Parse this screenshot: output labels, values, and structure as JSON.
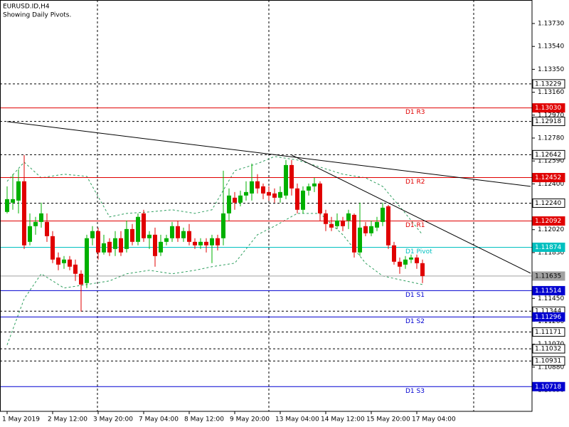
{
  "chart_data": {
    "type": "candlestick",
    "title": "EURUSD.ID,H4",
    "subtitle": "Showing Daily Pivots.",
    "up_color": "#00b000",
    "down_color": "#e00000",
    "ylim": [
      1.10513,
      1.13925
    ],
    "yticks": [
      {
        "value": 1.1373,
        "label": "1.13730"
      },
      {
        "value": 1.1354,
        "label": "1.13540"
      },
      {
        "value": 1.1335,
        "label": "1.13350"
      },
      {
        "value": 1.1316,
        "label": "1.13160"
      },
      {
        "value": 1.1297,
        "label": "1.12970"
      },
      {
        "value": 1.1278,
        "label": "1.12780"
      },
      {
        "value": 1.1259,
        "label": "1.12590"
      },
      {
        "value": 1.124,
        "label": "1.12400"
      },
      {
        "value": 1.1202,
        "label": "1.12020"
      },
      {
        "value": 1.1183,
        "label": "1.11830"
      },
      {
        "value": 1.1145,
        "label": "1.11450"
      },
      {
        "value": 1.1126,
        "label": "1.11260"
      },
      {
        "value": 1.1107,
        "label": "1.11070"
      },
      {
        "value": 1.1088,
        "label": "1.10880"
      },
      {
        "value": 1.1069,
        "label": "1.10690"
      }
    ],
    "categories": [
      "1 May 2019",
      null,
      null,
      null,
      null,
      null,
      null,
      null,
      "2 May 12:00",
      null,
      null,
      null,
      null,
      null,
      null,
      null,
      "3 May 20:00",
      null,
      null,
      null,
      null,
      null,
      null,
      null,
      "7 May 04:00",
      null,
      null,
      null,
      null,
      null,
      null,
      null,
      "8 May 12:00",
      null,
      null,
      null,
      null,
      null,
      null,
      null,
      "9 May 20:00",
      null,
      null,
      null,
      null,
      null,
      null,
      null,
      "13 May 04:00",
      null,
      null,
      null,
      null,
      null,
      null,
      null,
      "14 May 12:00",
      null,
      null,
      null,
      null,
      null,
      null,
      null,
      "15 May 20:00",
      null,
      null,
      null,
      null,
      null,
      null,
      null,
      "17 May 04:00",
      null
    ],
    "candles": [
      [
        1.12167,
        1.12379,
        1.12155,
        1.12273
      ],
      [
        1.12244,
        1.1248,
        1.12185,
        1.12273
      ],
      [
        1.12261,
        1.12521,
        1.12155,
        1.12421
      ],
      [
        1.12421,
        1.12639,
        1.1186,
        1.1189
      ],
      [
        1.11919,
        1.12155,
        1.1189,
        1.12049
      ],
      [
        1.12049,
        1.12126,
        1.11978,
        1.12084
      ],
      [
        1.12084,
        1.12244,
        1.12037,
        1.12155
      ],
      [
        1.12084,
        1.12155,
        1.11919,
        1.11966
      ],
      [
        1.11966,
        1.12008,
        1.11742,
        1.11772
      ],
      [
        1.11789,
        1.11831,
        1.11683,
        1.1173
      ],
      [
        1.11742,
        1.11801,
        1.11695,
        1.11772
      ],
      [
        1.11772,
        1.11801,
        1.11683,
        1.11713
      ],
      [
        1.1173,
        1.11772,
        1.11595,
        1.11654
      ],
      [
        1.11654,
        1.11683,
        1.11341,
        1.11565
      ],
      [
        1.11577,
        1.11978,
        1.11536,
        1.11949
      ],
      [
        1.11949,
        1.12049,
        1.1189,
        1.12008
      ],
      [
        1.12008,
        1.12037,
        1.11772,
        1.11831
      ],
      [
        1.11831,
        1.11978,
        1.11813,
        1.11907
      ],
      [
        1.11919,
        1.11949,
        1.11801,
        1.11831
      ],
      [
        1.1186,
        1.12008,
        1.11801,
        1.11949
      ],
      [
        1.11949,
        1.12008,
        1.11801,
        1.11831
      ],
      [
        1.1186,
        1.12096,
        1.11831,
        1.12025
      ],
      [
        1.12025,
        1.12067,
        1.1189,
        1.11919
      ],
      [
        1.11919,
        1.12155,
        1.1189,
        1.12126
      ],
      [
        1.12155,
        1.12185,
        1.11919,
        1.11949
      ],
      [
        1.11949,
        1.12008,
        1.1186,
        1.11978
      ],
      [
        1.11978,
        1.12037,
        1.11713,
        1.11801
      ],
      [
        1.11831,
        1.11978,
        1.11801,
        1.11919
      ],
      [
        1.11919,
        1.11978,
        1.1189,
        1.11949
      ],
      [
        1.11949,
        1.12084,
        1.11919,
        1.12049
      ],
      [
        1.12049,
        1.12096,
        1.11919,
        1.11949
      ],
      [
        1.11949,
        1.12037,
        1.11919,
        1.12008
      ],
      [
        1.12008,
        1.12067,
        1.1189,
        1.11919
      ],
      [
        1.11919,
        1.11949,
        1.1186,
        1.1189
      ],
      [
        1.1189,
        1.11949,
        1.1186,
        1.11919
      ],
      [
        1.11919,
        1.11949,
        1.11831,
        1.1189
      ],
      [
        1.1189,
        1.11978,
        1.11742,
        1.11949
      ],
      [
        1.11949,
        1.11978,
        1.11848,
        1.1189
      ],
      [
        1.11949,
        1.12509,
        1.1189,
        1.12155
      ],
      [
        1.12155,
        1.12362,
        1.12096,
        1.12303
      ],
      [
        1.12285,
        1.12332,
        1.12185,
        1.12244
      ],
      [
        1.12244,
        1.12344,
        1.12214,
        1.12303
      ],
      [
        1.12303,
        1.12421,
        1.12261,
        1.12332
      ],
      [
        1.1232,
        1.12568,
        1.12261,
        1.12421
      ],
      [
        1.12421,
        1.1248,
        1.1232,
        1.12362
      ],
      [
        1.12379,
        1.12403,
        1.12273,
        1.1232
      ],
      [
        1.12332,
        1.12379,
        1.12261,
        1.12303
      ],
      [
        1.1232,
        1.12362,
        1.12244,
        1.12285
      ],
      [
        1.12285,
        1.12379,
        1.12244,
        1.12332
      ],
      [
        1.12303,
        1.12598,
        1.12273,
        1.12556
      ],
      [
        1.12556,
        1.12598,
        1.12303,
        1.12362
      ],
      [
        1.12362,
        1.12403,
        1.12155,
        1.12185
      ],
      [
        1.12185,
        1.12379,
        1.12155,
        1.12344
      ],
      [
        1.12344,
        1.12403,
        1.12303,
        1.12379
      ],
      [
        1.12379,
        1.1245,
        1.12332,
        1.12403
      ],
      [
        1.12403,
        1.12421,
        1.12096,
        1.12155
      ],
      [
        1.12155,
        1.12185,
        1.12008,
        1.12067
      ],
      [
        1.12067,
        1.12126,
        1.12008,
        1.12037
      ],
      [
        1.12049,
        1.12155,
        1.12025,
        1.12096
      ],
      [
        1.12096,
        1.12126,
        1.12008,
        1.12049
      ],
      [
        1.12096,
        1.12185,
        1.12025,
        1.12155
      ],
      [
        1.12143,
        1.12155,
        1.11789,
        1.11831
      ],
      [
        1.11831,
        1.12244,
        1.11801,
        1.12037
      ],
      [
        1.12049,
        1.12084,
        1.11966,
        1.1199
      ],
      [
        1.1199,
        1.12096,
        1.11966,
        1.12049
      ],
      [
        1.12037,
        1.12126,
        1.12008,
        1.12084
      ],
      [
        1.12084,
        1.12244,
        1.12049,
        1.12202
      ],
      [
        1.12214,
        1.12226,
        1.1186,
        1.1189
      ],
      [
        1.1189,
        1.11919,
        1.1173,
        1.11754
      ],
      [
        1.11754,
        1.11789,
        1.11654,
        1.11713
      ],
      [
        1.1173,
        1.11801,
        1.11695,
        1.11772
      ],
      [
        1.11772,
        1.11813,
        1.11742,
        1.11789
      ],
      [
        1.11789,
        1.11813,
        1.11695,
        1.11742
      ],
      [
        1.11742,
        1.11772,
        1.11577,
        1.11635
      ]
    ],
    "bands": {
      "color": "#2e9e5e",
      "x": [
        0,
        3,
        6,
        10,
        14,
        18,
        21,
        25,
        29,
        33,
        36,
        40,
        44,
        47,
        51,
        55,
        59,
        63,
        66,
        70,
        73
      ],
      "upper": [
        1.12421,
        1.1258,
        1.1245,
        1.1248,
        1.12462,
        1.12126,
        1.12155,
        1.12167,
        1.12185,
        1.12155,
        1.12185,
        1.12509,
        1.12568,
        1.12627,
        1.12598,
        1.12539,
        1.1248,
        1.1245,
        1.12379,
        1.12155,
        1.11978
      ],
      "lower": [
        1.11064,
        1.11447,
        1.11654,
        1.11536,
        1.11565,
        1.11595,
        1.11654,
        1.11683,
        1.11654,
        1.11683,
        1.11713,
        1.11742,
        1.11978,
        1.12049,
        1.12155,
        1.12155,
        1.11978,
        1.11742,
        1.11636,
        1.11595,
        1.11565
      ]
    },
    "trendlines": [
      {
        "color": "#000000",
        "x": [
          0,
          92
        ],
        "values": [
          1.12916,
          1.12379
        ]
      },
      {
        "color": "#000000",
        "x": [
          50,
          92
        ],
        "values": [
          1.12639,
          1.11659
        ]
      }
    ],
    "levels": [
      {
        "value": 1.13229,
        "label": "1.13229",
        "color": "#000000",
        "style": "dashed"
      },
      {
        "value": 1.1303,
        "label": "1.13030",
        "name": "D1 R3",
        "color": "#e00000",
        "style": "solid"
      },
      {
        "value": 1.12918,
        "label": "1.12918",
        "color": "#000000",
        "style": "dashed"
      },
      {
        "value": 1.12642,
        "label": "1.12642",
        "color": "#000000",
        "style": "dashed"
      },
      {
        "value": 1.12452,
        "label": "1.12452",
        "name": "D1 R2",
        "color": "#e00000",
        "style": "solid"
      },
      {
        "value": 1.1224,
        "label": "1.12240",
        "color": "#000000",
        "style": "dashed"
      },
      {
        "value": 1.12092,
        "label": "1.12092",
        "name": "D1 R1",
        "color": "#e00000",
        "style": "solid"
      },
      {
        "value": 1.11874,
        "label": "1.11874",
        "name": "D1 Pivot",
        "color": "#00c0c0",
        "style": "solid"
      },
      {
        "value": 1.11635,
        "label": "1.11635",
        "color": "#a0a0a0",
        "style": "solid"
      },
      {
        "value": 1.11514,
        "label": "1.11514",
        "name": "D1 S1",
        "color": "#0000d0",
        "style": "solid"
      },
      {
        "value": 1.11344,
        "label": "1.11344",
        "color": "#000000",
        "style": "dashed"
      },
      {
        "value": 1.11296,
        "label": "1.11296",
        "name": "D1 S2",
        "color": "#0000d0",
        "style": "solid"
      },
      {
        "value": 1.11171,
        "label": "1.11171",
        "color": "#000000",
        "style": "dashed"
      },
      {
        "value": 1.11032,
        "label": "1.11032",
        "color": "#000000",
        "style": "dashed"
      },
      {
        "value": 1.10931,
        "label": "1.10931",
        "color": "#000000",
        "style": "dashed"
      },
      {
        "value": 1.10718,
        "label": "1.10718",
        "name": "D1 S3",
        "color": "#0000d0",
        "style": "solid"
      }
    ]
  }
}
